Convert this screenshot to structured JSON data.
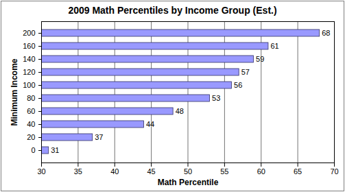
{
  "chart_data": {
    "type": "bar",
    "orientation": "horizontal",
    "title": "2009 Math Percentiles by Income Group (Est.)",
    "x_label": "Math Percentile",
    "y_label": "Minimum Income",
    "categories": [
      "0",
      "20",
      "40",
      "60",
      "80",
      "100",
      "120",
      "140",
      "160",
      "200"
    ],
    "values": [
      31,
      37,
      44,
      48,
      53,
      56,
      57,
      59,
      61,
      68
    ],
    "color": "#9999ff",
    "xlim": [
      30,
      70
    ],
    "xticks": [
      30,
      35,
      40,
      45,
      50,
      55,
      60,
      65,
      70
    ],
    "grid": true,
    "data_labels": true
  }
}
